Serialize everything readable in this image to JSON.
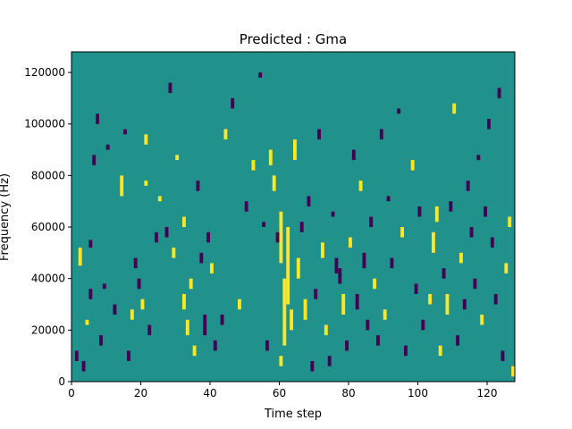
{
  "chart_data": {
    "type": "heatmap",
    "title": "Predicted : Gma",
    "xlabel": "Time step",
    "ylabel": "Frequency (Hz)",
    "xlim": [
      0,
      128
    ],
    "ylim": [
      0,
      128000
    ],
    "x_ticks": [
      0,
      20,
      40,
      60,
      80,
      100,
      120
    ],
    "y_ticks": [
      0,
      20000,
      40000,
      60000,
      80000,
      100000,
      120000
    ],
    "n_time_steps": 128,
    "n_freq_bins": 128,
    "value_levels": {
      "low": -1,
      "mid": 0,
      "high": 1
    },
    "colors": {
      "background": "#21918c",
      "low": "#440154",
      "high": "#fde725"
    },
    "cells_note": "each cell: [time_step_start, time_step_end, freq_start_hz, freq_end_hz, level]",
    "cells": [
      [
        1,
        2,
        8000,
        12000,
        -1
      ],
      [
        2,
        3,
        45000,
        52000,
        1
      ],
      [
        3,
        4,
        4000,
        8000,
        -1
      ],
      [
        4,
        5,
        22000,
        24000,
        1
      ],
      [
        5,
        6,
        32000,
        36000,
        -1
      ],
      [
        5,
        6,
        52000,
        55000,
        -1
      ],
      [
        6,
        7,
        84000,
        88000,
        -1
      ],
      [
        7,
        8,
        100000,
        104000,
        -1
      ],
      [
        8,
        9,
        14000,
        18000,
        -1
      ],
      [
        9,
        10,
        36000,
        38000,
        -1
      ],
      [
        10,
        11,
        90000,
        92000,
        -1
      ],
      [
        12,
        13,
        26000,
        30000,
        -1
      ],
      [
        14,
        15,
        72000,
        80000,
        1
      ],
      [
        15,
        16,
        96000,
        98000,
        -1
      ],
      [
        16,
        17,
        8000,
        12000,
        -1
      ],
      [
        17,
        18,
        24000,
        28000,
        1
      ],
      [
        18,
        19,
        44000,
        48000,
        -1
      ],
      [
        19,
        20,
        36000,
        40000,
        -1
      ],
      [
        20,
        21,
        28000,
        32000,
        1
      ],
      [
        21,
        22,
        76000,
        78000,
        1
      ],
      [
        21,
        22,
        92000,
        96000,
        1
      ],
      [
        22,
        23,
        18000,
        22000,
        -1
      ],
      [
        24,
        25,
        54000,
        58000,
        -1
      ],
      [
        25,
        26,
        70000,
        72000,
        1
      ],
      [
        27,
        28,
        56000,
        60000,
        -1
      ],
      [
        28,
        29,
        112000,
        116000,
        -1
      ],
      [
        29,
        30,
        48000,
        52000,
        1
      ],
      [
        30,
        31,
        86000,
        88000,
        1
      ],
      [
        32,
        33,
        28000,
        34000,
        1
      ],
      [
        32,
        33,
        60000,
        64000,
        1
      ],
      [
        33,
        34,
        18000,
        24000,
        1
      ],
      [
        34,
        35,
        36000,
        40000,
        1
      ],
      [
        35,
        36,
        10000,
        14000,
        1
      ],
      [
        36,
        37,
        74000,
        78000,
        -1
      ],
      [
        37,
        38,
        46000,
        50000,
        -1
      ],
      [
        38,
        39,
        18000,
        26000,
        -1
      ],
      [
        39,
        40,
        54000,
        58000,
        -1
      ],
      [
        40,
        41,
        42000,
        46000,
        1
      ],
      [
        41,
        42,
        12000,
        16000,
        -1
      ],
      [
        43,
        44,
        22000,
        26000,
        -1
      ],
      [
        44,
        45,
        94000,
        98000,
        1
      ],
      [
        46,
        47,
        106000,
        110000,
        -1
      ],
      [
        48,
        49,
        28000,
        32000,
        1
      ],
      [
        50,
        51,
        66000,
        70000,
        -1
      ],
      [
        52,
        53,
        82000,
        86000,
        1
      ],
      [
        54,
        55,
        118000,
        120000,
        -1
      ],
      [
        55,
        56,
        60000,
        62000,
        -1
      ],
      [
        56,
        57,
        12000,
        16000,
        -1
      ],
      [
        57,
        58,
        84000,
        90000,
        1
      ],
      [
        58,
        59,
        74000,
        80000,
        1
      ],
      [
        59,
        60,
        54000,
        58000,
        -1
      ],
      [
        60,
        61,
        6000,
        10000,
        1
      ],
      [
        60,
        61,
        46000,
        66000,
        1
      ],
      [
        61,
        62,
        14000,
        40000,
        1
      ],
      [
        62,
        63,
        30000,
        60000,
        1
      ],
      [
        63,
        64,
        20000,
        28000,
        1
      ],
      [
        64,
        65,
        86000,
        94000,
        1
      ],
      [
        65,
        66,
        40000,
        48000,
        1
      ],
      [
        66,
        67,
        58000,
        62000,
        -1
      ],
      [
        67,
        68,
        24000,
        32000,
        1
      ],
      [
        68,
        69,
        68000,
        72000,
        -1
      ],
      [
        69,
        70,
        4000,
        8000,
        -1
      ],
      [
        70,
        71,
        32000,
        36000,
        -1
      ],
      [
        71,
        72,
        94000,
        98000,
        -1
      ],
      [
        72,
        73,
        48000,
        54000,
        1
      ],
      [
        73,
        74,
        18000,
        22000,
        1
      ],
      [
        74,
        75,
        6000,
        10000,
        -1
      ],
      [
        75,
        76,
        64000,
        66000,
        -1
      ],
      [
        76,
        77,
        42000,
        48000,
        -1
      ],
      [
        77,
        78,
        38000,
        44000,
        -1
      ],
      [
        78,
        79,
        26000,
        34000,
        1
      ],
      [
        79,
        80,
        12000,
        16000,
        -1
      ],
      [
        80,
        81,
        52000,
        56000,
        1
      ],
      [
        81,
        82,
        86000,
        90000,
        -1
      ],
      [
        82,
        83,
        28000,
        34000,
        -1
      ],
      [
        83,
        84,
        74000,
        78000,
        1
      ],
      [
        84,
        85,
        44000,
        50000,
        -1
      ],
      [
        85,
        86,
        20000,
        24000,
        -1
      ],
      [
        86,
        87,
        60000,
        64000,
        -1
      ],
      [
        87,
        88,
        36000,
        40000,
        1
      ],
      [
        88,
        89,
        14000,
        18000,
        -1
      ],
      [
        89,
        90,
        94000,
        98000,
        -1
      ],
      [
        90,
        91,
        24000,
        28000,
        1
      ],
      [
        91,
        92,
        70000,
        72000,
        -1
      ],
      [
        92,
        93,
        44000,
        48000,
        -1
      ],
      [
        94,
        95,
        104000,
        106000,
        -1
      ],
      [
        95,
        96,
        56000,
        60000,
        1
      ],
      [
        96,
        97,
        10000,
        14000,
        -1
      ],
      [
        98,
        99,
        82000,
        86000,
        1
      ],
      [
        99,
        100,
        34000,
        38000,
        -1
      ],
      [
        100,
        101,
        64000,
        68000,
        -1
      ],
      [
        101,
        102,
        20000,
        24000,
        -1
      ],
      [
        103,
        104,
        30000,
        34000,
        1
      ],
      [
        104,
        105,
        50000,
        58000,
        1
      ],
      [
        105,
        106,
        62000,
        68000,
        1
      ],
      [
        106,
        107,
        10000,
        14000,
        1
      ],
      [
        107,
        108,
        40000,
        44000,
        -1
      ],
      [
        108,
        109,
        26000,
        34000,
        1
      ],
      [
        109,
        110,
        66000,
        70000,
        -1
      ],
      [
        110,
        111,
        104000,
        108000,
        1
      ],
      [
        111,
        112,
        14000,
        18000,
        -1
      ],
      [
        112,
        113,
        46000,
        50000,
        1
      ],
      [
        113,
        114,
        28000,
        32000,
        -1
      ],
      [
        114,
        115,
        74000,
        78000,
        -1
      ],
      [
        115,
        116,
        56000,
        60000,
        -1
      ],
      [
        116,
        117,
        36000,
        40000,
        -1
      ],
      [
        117,
        118,
        86000,
        88000,
        -1
      ],
      [
        118,
        119,
        22000,
        26000,
        1
      ],
      [
        119,
        120,
        64000,
        68000,
        -1
      ],
      [
        120,
        121,
        98000,
        102000,
        -1
      ],
      [
        121,
        122,
        52000,
        56000,
        -1
      ],
      [
        122,
        123,
        30000,
        34000,
        -1
      ],
      [
        123,
        124,
        110000,
        114000,
        -1
      ],
      [
        124,
        125,
        8000,
        12000,
        -1
      ],
      [
        125,
        126,
        42000,
        46000,
        1
      ],
      [
        126,
        127,
        60000,
        64000,
        1
      ],
      [
        127,
        128,
        2000,
        6000,
        1
      ]
    ]
  }
}
